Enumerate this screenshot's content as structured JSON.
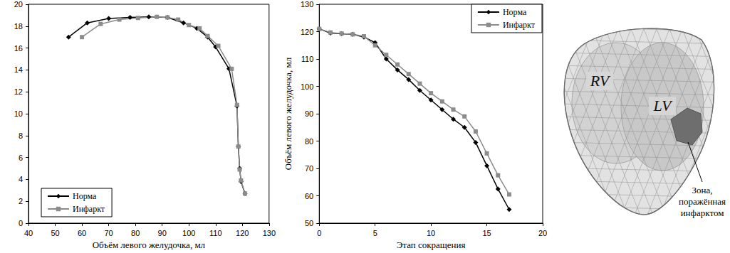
{
  "chart_data": [
    {
      "type": "line",
      "x_label": "Объём левого желудочка, мл",
      "series": [
        {
          "name": "Норма",
          "color": "#000000",
          "marker": "diamond",
          "x": [
            55,
            62,
            70,
            78,
            85,
            92,
            98,
            103,
            107,
            110,
            115,
            118,
            118.5,
            119,
            119.5,
            121
          ],
          "values": [
            17,
            18.3,
            18.7,
            18.8,
            18.85,
            18.8,
            18.3,
            17.8,
            17.0,
            16.1,
            14.1,
            10.7,
            7,
            5,
            3.8,
            2.7
          ]
        },
        {
          "name": "Инфаркт",
          "color": "#8c8c8c",
          "marker": "square",
          "x": [
            60,
            67,
            74,
            81,
            88,
            92,
            96,
            100,
            104,
            107,
            111,
            116,
            118,
            118.5,
            119,
            119.5,
            121
          ],
          "values": [
            17,
            18.2,
            18.6,
            18.75,
            18.85,
            18.8,
            18.6,
            18.1,
            17.8,
            17.1,
            16.2,
            14.1,
            10.8,
            7,
            4.9,
            3.9,
            2.7
          ]
        }
      ],
      "xlim": [
        40,
        130
      ],
      "xticks": [
        40,
        50,
        60,
        70,
        80,
        90,
        100,
        110,
        120,
        130
      ],
      "ylim": [
        0,
        20
      ],
      "yticks": [
        0,
        2,
        4,
        6,
        8,
        10,
        12,
        14,
        16,
        18,
        20
      ],
      "grid": false,
      "legend": "lower left"
    },
    {
      "type": "line",
      "x_label": "Этап сокращения",
      "y_label": "Объём левого желудочка, мл",
      "x": [
        0,
        1,
        2,
        3,
        4,
        5,
        6,
        7,
        8,
        9,
        10,
        11,
        12,
        13,
        14,
        15,
        16,
        17
      ],
      "series": [
        {
          "name": "Норма",
          "color": "#000000",
          "marker": "diamond",
          "values": [
            121,
            119.5,
            119.2,
            119,
            118,
            116,
            110,
            106,
            102.5,
            98.5,
            95,
            91.5,
            88,
            85,
            79.5,
            71,
            62.5,
            55
          ]
        },
        {
          "name": "Инфаркт",
          "color": "#8c8c8c",
          "marker": "square",
          "values": [
            121,
            119.7,
            119.3,
            119,
            118.3,
            115,
            111.5,
            108,
            104.5,
            101,
            97.5,
            94.5,
            91.5,
            89,
            83.5,
            75.5,
            67.5,
            60.5
          ]
        }
      ],
      "xlim": [
        0,
        20
      ],
      "xticks": [
        0,
        5,
        10,
        15,
        20
      ],
      "ylim": [
        50,
        130
      ],
      "yticks": [
        50,
        60,
        70,
        80,
        90,
        100,
        110,
        120,
        130
      ],
      "grid": false,
      "legend": "upper right"
    }
  ],
  "diagram": {
    "labels": [
      "RV",
      "LV"
    ],
    "annotation": "Зона, поражённая инфарктом"
  }
}
